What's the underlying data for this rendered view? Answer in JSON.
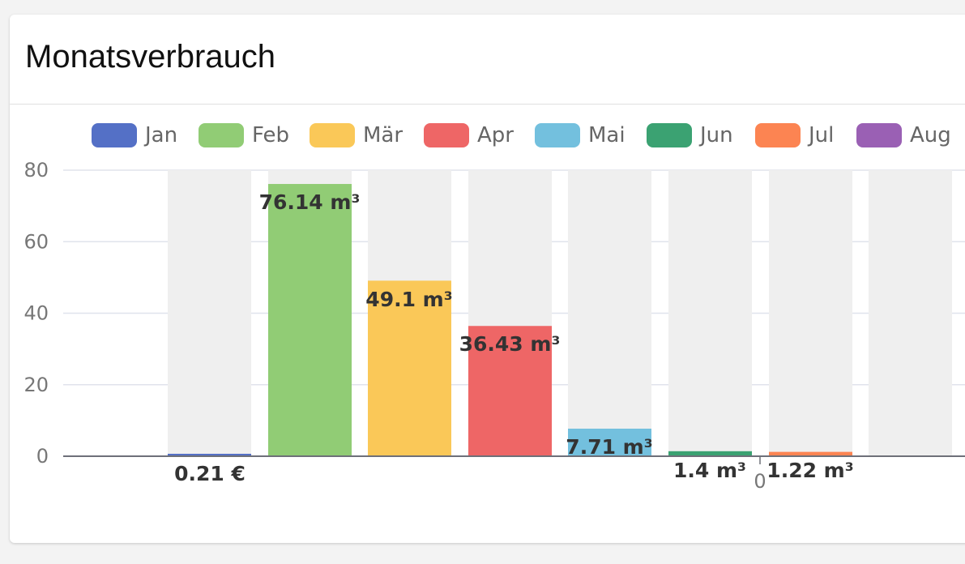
{
  "card": {
    "title": "Monatsverbrauch"
  },
  "chart_data": {
    "type": "bar",
    "categories": [
      "Jan",
      "Feb",
      "Mär",
      "Apr",
      "Mai",
      "Jun",
      "Jul",
      "Aug"
    ],
    "values": [
      0.21,
      76.14,
      49.1,
      36.43,
      7.71,
      1.4,
      1.22,
      0
    ],
    "value_labels": [
      "0.21 €",
      "76.14 m³",
      "49.1 m³",
      "36.43 m³",
      "7.71 m³",
      "1.4 m³",
      "1.22 m³",
      ""
    ],
    "colors": [
      "#5470c6",
      "#91cc75",
      "#fac858",
      "#ee6666",
      "#73c0de",
      "#3ba272",
      "#fc8452",
      "#9a60b4"
    ],
    "background_bar_color": "#efefef",
    "legend": [
      "Jan",
      "Feb",
      "Mär",
      "Apr",
      "Mai",
      "Jun",
      "Jul",
      "Aug"
    ],
    "legend_position": "top",
    "y_ticks": [
      0,
      20,
      40,
      60,
      80
    ],
    "ylim": [
      0,
      80
    ],
    "grid": true,
    "x_axis_extra_label": "0",
    "title": "",
    "xlabel": "",
    "ylabel": ""
  }
}
